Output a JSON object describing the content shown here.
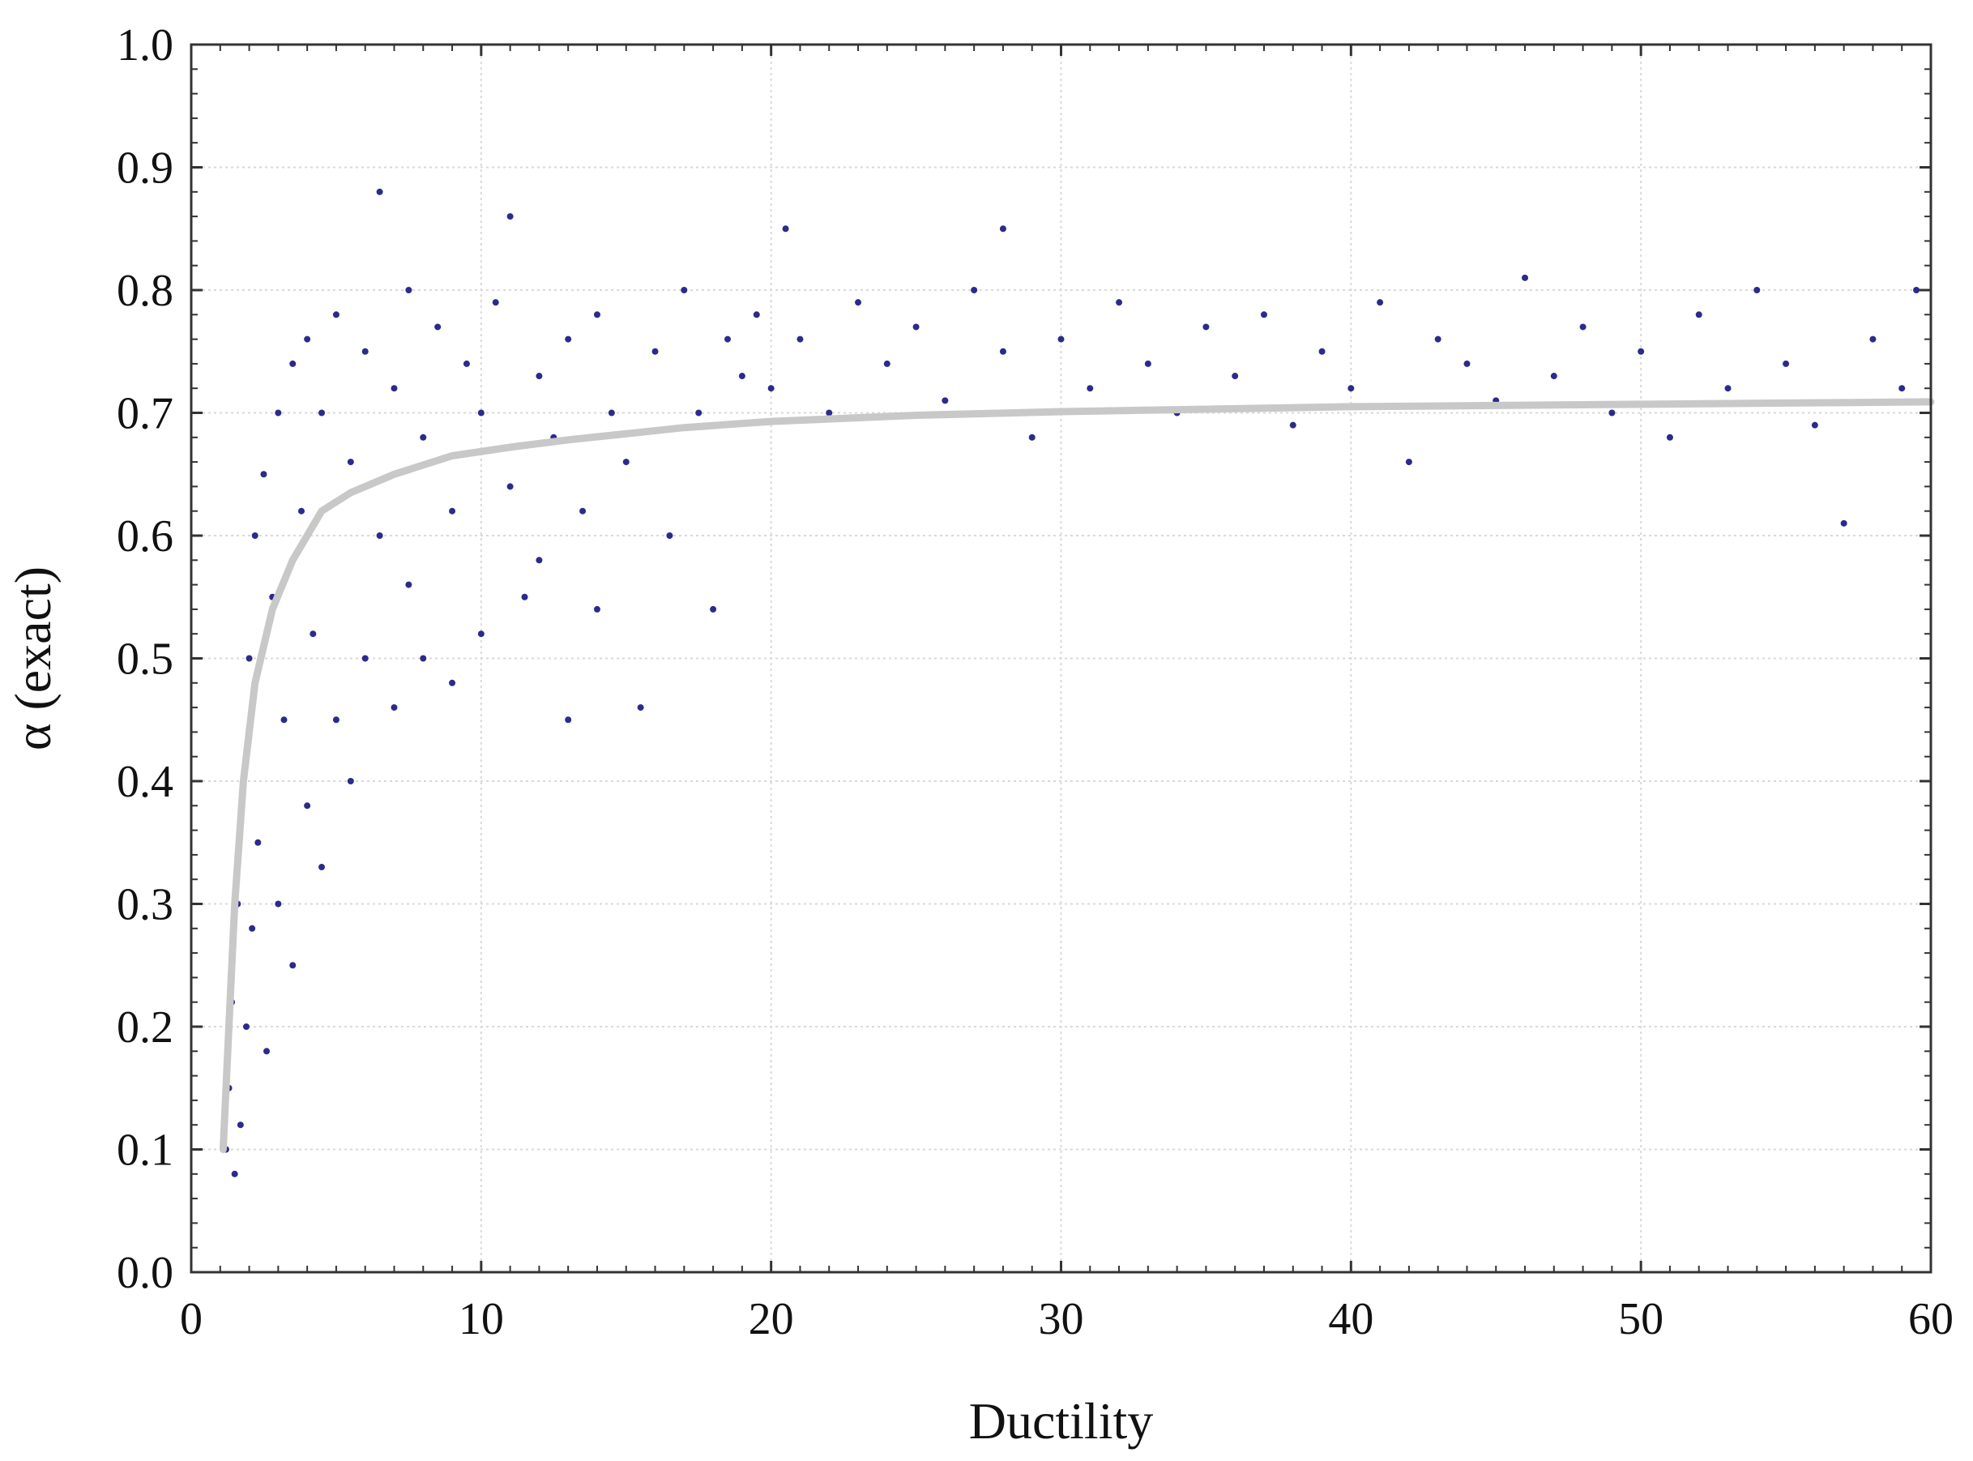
{
  "chart_data": {
    "type": "scatter",
    "title": "",
    "xlabel": "Ductility",
    "ylabel": "α (exact)",
    "xlim": [
      0,
      60
    ],
    "ylim": [
      0.0,
      1.0
    ],
    "x_ticks": [
      0,
      10,
      20,
      30,
      40,
      50,
      60
    ],
    "x_tick_labels": [
      "0",
      "10",
      "20",
      "30",
      "40",
      "50",
      "60"
    ],
    "y_ticks": [
      0.0,
      0.1,
      0.2,
      0.3,
      0.4,
      0.5,
      0.6,
      0.7,
      0.8,
      0.9,
      1.0
    ],
    "y_tick_labels": [
      "0.0",
      "0.1",
      "0.2",
      "0.3",
      "0.4",
      "0.5",
      "0.6",
      "0.7",
      "0.8",
      "0.9",
      "1.0"
    ],
    "grid": true,
    "legend": "none",
    "colors": {
      "points": "#2b2b8c",
      "fit_line": "#c8c8c8"
    },
    "series": [
      {
        "kind": "scatter",
        "points": [
          [
            1.2,
            0.1
          ],
          [
            1.3,
            0.15
          ],
          [
            1.4,
            0.22
          ],
          [
            1.5,
            0.08
          ],
          [
            1.6,
            0.3
          ],
          [
            1.7,
            0.12
          ],
          [
            1.8,
            0.4
          ],
          [
            1.9,
            0.2
          ],
          [
            2.0,
            0.5
          ],
          [
            2.1,
            0.28
          ],
          [
            2.2,
            0.6
          ],
          [
            2.3,
            0.35
          ],
          [
            2.5,
            0.65
          ],
          [
            2.6,
            0.18
          ],
          [
            2.8,
            0.55
          ],
          [
            3.0,
            0.7
          ],
          [
            3.0,
            0.3
          ],
          [
            3.2,
            0.45
          ],
          [
            3.5,
            0.74
          ],
          [
            3.5,
            0.25
          ],
          [
            3.8,
            0.62
          ],
          [
            4.0,
            0.76
          ],
          [
            4.0,
            0.38
          ],
          [
            4.2,
            0.52
          ],
          [
            4.5,
            0.7
          ],
          [
            4.5,
            0.33
          ],
          [
            5.0,
            0.78
          ],
          [
            5.0,
            0.45
          ],
          [
            5.5,
            0.66
          ],
          [
            5.5,
            0.4
          ],
          [
            6.0,
            0.75
          ],
          [
            6.0,
            0.5
          ],
          [
            6.5,
            0.6
          ],
          [
            6.5,
            0.88
          ],
          [
            7.0,
            0.72
          ],
          [
            7.0,
            0.46
          ],
          [
            7.5,
            0.8
          ],
          [
            7.5,
            0.56
          ],
          [
            8.0,
            0.68
          ],
          [
            8.0,
            0.5
          ],
          [
            8.5,
            0.77
          ],
          [
            9.0,
            0.62
          ],
          [
            9.0,
            0.48
          ],
          [
            9.5,
            0.74
          ],
          [
            10.0,
            0.7
          ],
          [
            10.0,
            0.52
          ],
          [
            10.5,
            0.79
          ],
          [
            11.0,
            0.64
          ],
          [
            11.0,
            0.86
          ],
          [
            11.5,
            0.55
          ],
          [
            12.0,
            0.73
          ],
          [
            12.0,
            0.58
          ],
          [
            12.5,
            0.68
          ],
          [
            13.0,
            0.76
          ],
          [
            13.0,
            0.45
          ],
          [
            13.5,
            0.62
          ],
          [
            14.0,
            0.78
          ],
          [
            14.0,
            0.54
          ],
          [
            14.5,
            0.7
          ],
          [
            15.0,
            0.66
          ],
          [
            15.5,
            0.46
          ],
          [
            16.0,
            0.75
          ],
          [
            16.5,
            0.6
          ],
          [
            17.0,
            0.8
          ],
          [
            17.5,
            0.7
          ],
          [
            18.0,
            0.54
          ],
          [
            18.5,
            0.76
          ],
          [
            19.0,
            0.73
          ],
          [
            19.5,
            0.78
          ],
          [
            20.0,
            0.72
          ],
          [
            20.5,
            0.85
          ],
          [
            21.0,
            0.76
          ],
          [
            22.0,
            0.7
          ],
          [
            23.0,
            0.79
          ],
          [
            24.0,
            0.74
          ],
          [
            25.0,
            0.77
          ],
          [
            26.0,
            0.71
          ],
          [
            27.0,
            0.8
          ],
          [
            28.0,
            0.75
          ],
          [
            28.0,
            0.85
          ],
          [
            29.0,
            0.68
          ],
          [
            30.0,
            0.76
          ],
          [
            31.0,
            0.72
          ],
          [
            32.0,
            0.79
          ],
          [
            33.0,
            0.74
          ],
          [
            34.0,
            0.7
          ],
          [
            35.0,
            0.77
          ],
          [
            36.0,
            0.73
          ],
          [
            37.0,
            0.78
          ],
          [
            38.0,
            0.69
          ],
          [
            39.0,
            0.75
          ],
          [
            40.0,
            0.72
          ],
          [
            41.0,
            0.79
          ],
          [
            42.0,
            0.66
          ],
          [
            43.0,
            0.76
          ],
          [
            44.0,
            0.74
          ],
          [
            45.0,
            0.71
          ],
          [
            46.0,
            0.81
          ],
          [
            47.0,
            0.73
          ],
          [
            48.0,
            0.77
          ],
          [
            49.0,
            0.7
          ],
          [
            50.0,
            0.75
          ],
          [
            51.0,
            0.68
          ],
          [
            52.0,
            0.78
          ],
          [
            53.0,
            0.72
          ],
          [
            54.0,
            0.8
          ],
          [
            55.0,
            0.74
          ],
          [
            56.0,
            0.69
          ],
          [
            57.0,
            0.61
          ],
          [
            58.0,
            0.76
          ],
          [
            59.0,
            0.72
          ],
          [
            59.5,
            0.8
          ]
        ]
      },
      {
        "kind": "fit",
        "points": [
          [
            1.1,
            0.1
          ],
          [
            1.3,
            0.2
          ],
          [
            1.5,
            0.3
          ],
          [
            1.8,
            0.4
          ],
          [
            2.2,
            0.48
          ],
          [
            2.8,
            0.54
          ],
          [
            3.5,
            0.58
          ],
          [
            4.5,
            0.62
          ],
          [
            5.5,
            0.635
          ],
          [
            7.0,
            0.65
          ],
          [
            9.0,
            0.665
          ],
          [
            11.0,
            0.672
          ],
          [
            13.0,
            0.678
          ],
          [
            15.0,
            0.683
          ],
          [
            17.0,
            0.688
          ],
          [
            20.0,
            0.693
          ],
          [
            25.0,
            0.698
          ],
          [
            30.0,
            0.701
          ],
          [
            35.0,
            0.703
          ],
          [
            40.0,
            0.705
          ],
          [
            45.0,
            0.706
          ],
          [
            50.0,
            0.707
          ],
          [
            55.0,
            0.708
          ],
          [
            60.0,
            0.709
          ]
        ]
      }
    ]
  }
}
